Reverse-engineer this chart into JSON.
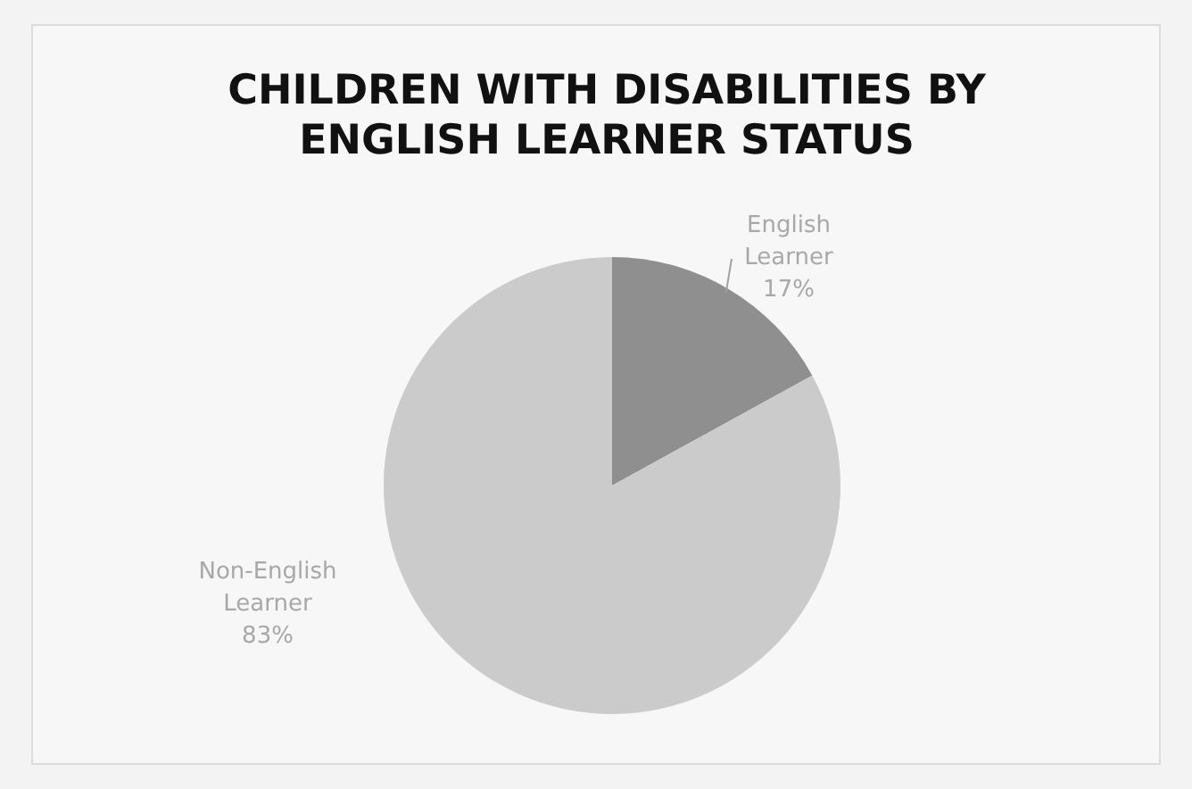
{
  "chart_data": {
    "type": "pie",
    "title": "CHILDREN WITH DISABILITIES BY ENGLISH LEARNER STATUS",
    "categories": [
      "English Learner",
      "Non-English Learner"
    ],
    "values": [
      17,
      83
    ],
    "colors": [
      "#8f8f8f",
      "#cbcbcb"
    ],
    "value_labels": [
      "17%",
      "83%"
    ]
  }
}
